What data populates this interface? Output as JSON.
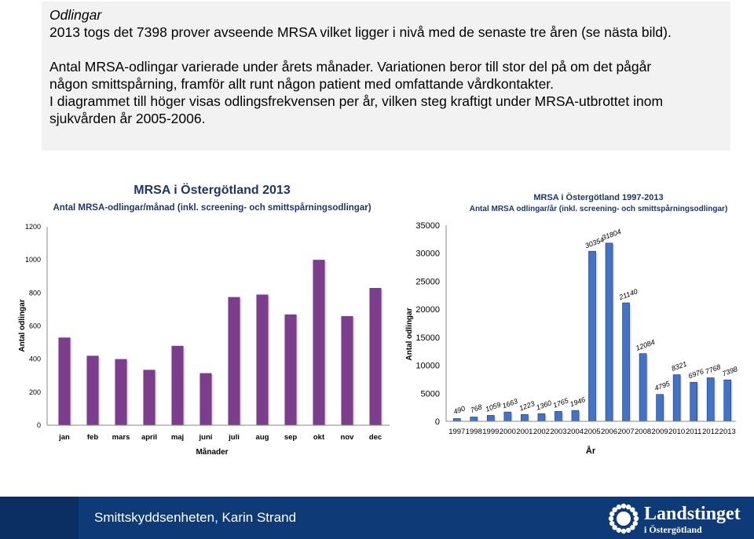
{
  "text": {
    "heading": "Odlingar",
    "line1": "2013 togs det 7398 prover avseende MRSA vilket ligger i nivå med de senaste tre åren (se nästa bild).",
    "para2_line1": "Antal MRSA-odlingar varierade under årets månader. Variationen beror till stor del på om det pågår",
    "para2_line2": "någon smittspårning, framför allt runt någon patient med omfattande vårdkontakter.",
    "para3_line1": "I diagrammet till höger visas odlingsfrekvensen per år, vilken steg kraftigt under MRSA-utbrottet inom",
    "para3_line2": "sjukvården år 2005-2006."
  },
  "colors": {
    "monthly_bar": "#7b3d8c",
    "yearly_bar": "#4472c4",
    "footer_bg": "#0f3a78"
  },
  "footer": {
    "text": "Smittskyddsenheten, Karin Strand",
    "logo_name": "Landstinget",
    "logo_sub": "i Östergötland"
  },
  "chart_data": [
    {
      "type": "bar",
      "title": "MRSA i Östergötland 2013",
      "subtitle": "Antal MRSA-odlingar/månad (inkl. screening- och smittspårningsodlingar)",
      "xlabel": "Månader",
      "ylabel": "Antal odlingar",
      "ylim": [
        0,
        1200
      ],
      "yticks": [
        "0",
        "200",
        "400",
        "600",
        "800",
        "1000",
        "1200"
      ],
      "categories": [
        "jan",
        "feb",
        "mars",
        "april",
        "maj",
        "juni",
        "juli",
        "aug",
        "sep",
        "okt",
        "nov",
        "dec"
      ],
      "values": [
        530,
        420,
        400,
        335,
        480,
        315,
        775,
        790,
        670,
        1000,
        660,
        830
      ],
      "grid": false
    },
    {
      "type": "bar",
      "title": "MRSA i Östergötland 1997-2013",
      "subtitle": "Antal MRSA odlingar/år (inkl. screening- och smittspårningsodlingar)",
      "xlabel": "År",
      "ylabel": "Antal odlingar",
      "ylim": [
        0,
        35000
      ],
      "yticks": [
        "0",
        "5000",
        "10000",
        "15000",
        "20000",
        "25000",
        "30000",
        "35000"
      ],
      "categories": [
        "1997",
        "1998",
        "1999",
        "2000",
        "2001",
        "2002",
        "2003",
        "2004",
        "2005",
        "2006",
        "2007",
        "2008",
        "2009",
        "2010",
        "2011",
        "2012",
        "2013"
      ],
      "values": [
        490,
        768,
        1059,
        1663,
        1223,
        1360,
        1765,
        1946,
        30354,
        31804,
        21140,
        12084,
        4795,
        8321,
        6976,
        7768,
        7398
      ],
      "labels": [
        "490",
        "768",
        "1059",
        "1663",
        "1223",
        "1360",
        "1765",
        "1946",
        "30354",
        "31804",
        "21140",
        "12084",
        "4795",
        "8321",
        "6976",
        "7768",
        "7398"
      ],
      "grid": false
    }
  ]
}
